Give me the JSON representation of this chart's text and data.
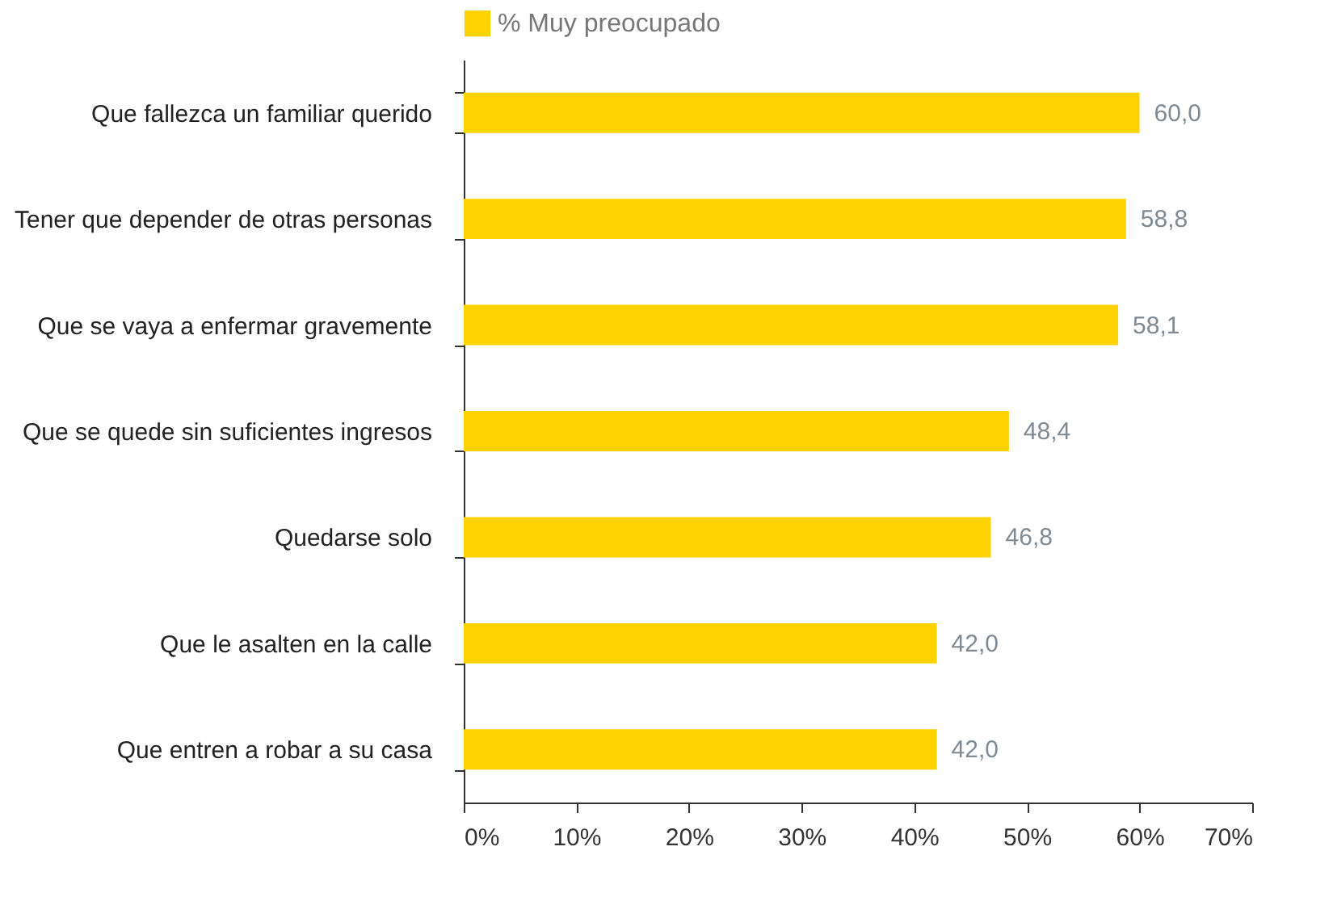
{
  "chart_data": {
    "type": "bar",
    "orientation": "horizontal",
    "categories": [
      "Que fallezca un familiar querido",
      "Tener que depender de otras personas",
      "Que se vaya a enfermar gravemente",
      "Que se quede sin suficientes ingresos",
      "Quedarse solo",
      "Que le asalten en la calle",
      "Que entren a robar a su casa"
    ],
    "series": [
      {
        "name": "% Muy preocupado",
        "color": "#fcd200",
        "values": [
          60.0,
          58.8,
          58.1,
          48.4,
          46.8,
          42.0,
          42.0
        ],
        "value_labels": [
          "60,0",
          "58,8",
          "58,1",
          "48,4",
          "46,8",
          "42,0",
          "42,0"
        ]
      }
    ],
    "xlim": [
      0,
      70
    ],
    "xticks": [
      {
        "value": 0,
        "label": "0%"
      },
      {
        "value": 10,
        "label": "10%"
      },
      {
        "value": 20,
        "label": "20%"
      },
      {
        "value": 30,
        "label": "30%"
      },
      {
        "value": 40,
        "label": "40%"
      },
      {
        "value": 50,
        "label": "50%"
      },
      {
        "value": 60,
        "label": "60%"
      },
      {
        "value": 70,
        "label": "70%"
      }
    ],
    "legend": "top",
    "grid": false
  }
}
